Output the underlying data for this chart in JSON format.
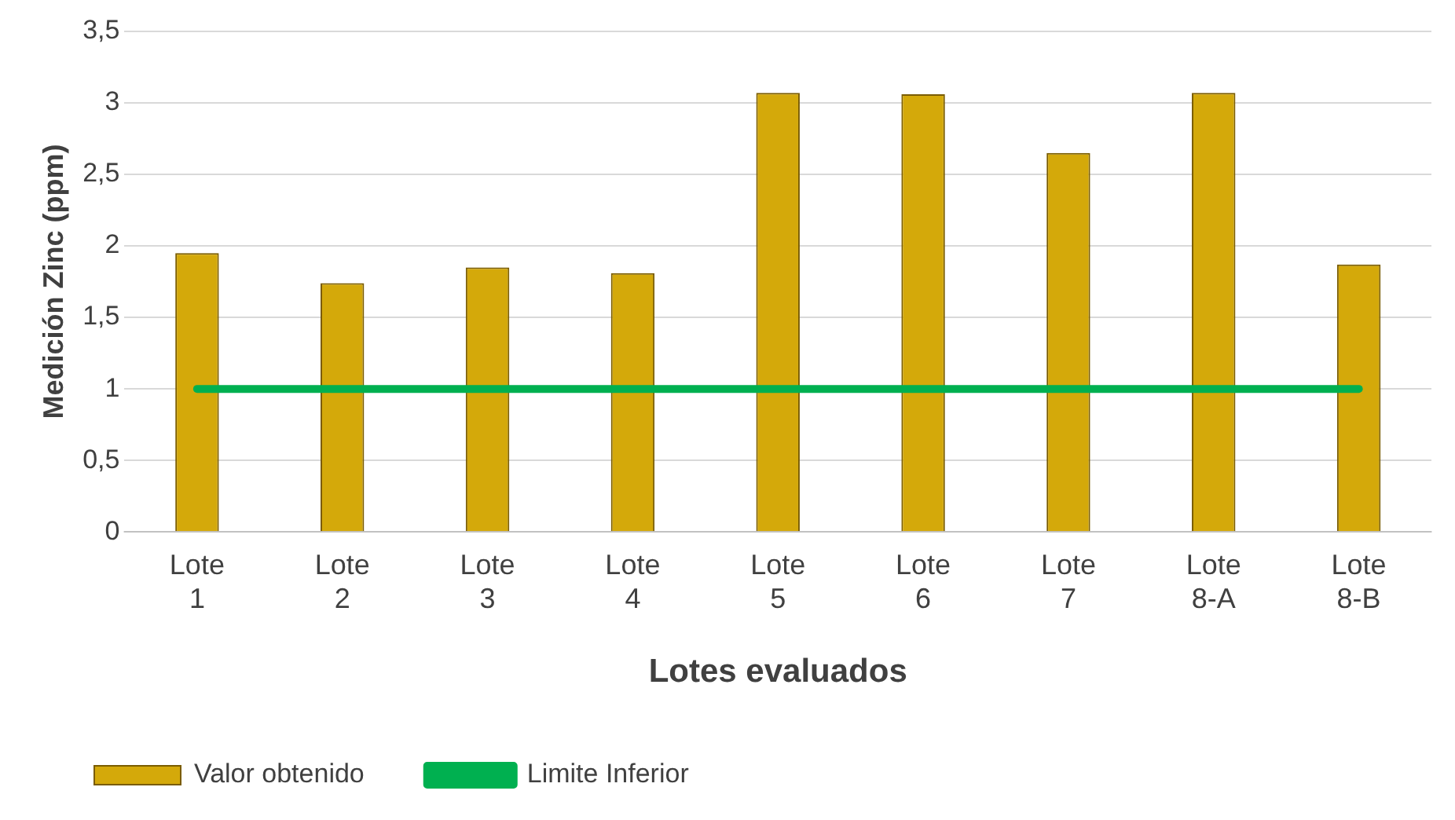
{
  "chart_data": {
    "type": "bar",
    "xlabel": "Lotes evaluados",
    "ylabel": "Medición Zinc (ppm)",
    "categories": [
      "Lote 1",
      "Lote 2",
      "Lote 3",
      "Lote 4",
      "Lote 5",
      "Lote 6",
      "Lote 7",
      "Lote 8-A",
      "Lote 8-B"
    ],
    "series": [
      {
        "name": "Valor obtenido",
        "color": "#d4a90a",
        "values": [
          1.95,
          1.74,
          1.85,
          1.81,
          3.07,
          3.06,
          2.65,
          3.07,
          1.87
        ]
      },
      {
        "name": "Limite Inferior",
        "type": "line",
        "color": "#00b050",
        "values": [
          1,
          1,
          1,
          1,
          1,
          1,
          1,
          1,
          1
        ]
      }
    ],
    "ylim": [
      0,
      3.5
    ],
    "yticks": [
      0,
      {
        "value": 0.5,
        "label": "0,5"
      },
      1,
      {
        "value": 1.5,
        "label": "1,5"
      },
      2,
      {
        "value": 2.5,
        "label": "2,5"
      },
      3,
      {
        "value": 3.5,
        "label": "3,5"
      }
    ],
    "grid": "y",
    "legend": "bottom left",
    "marker": "none"
  }
}
